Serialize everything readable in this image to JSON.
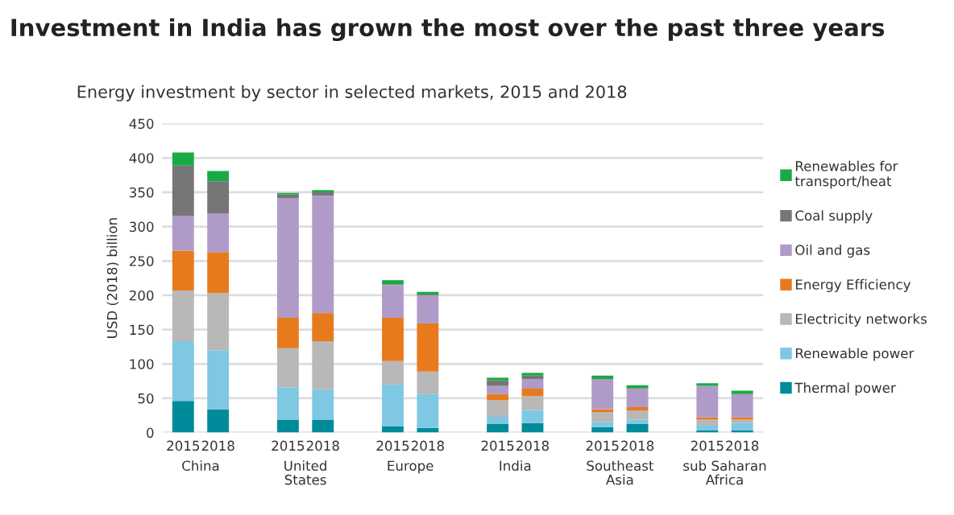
{
  "chart_data": {
    "type": "bar",
    "stacked": true,
    "title": "Investment in India has grown the most over the past three years",
    "subtitle": "Energy investment by sector in selected markets, 2015 and 2018",
    "ylabel": "USD (2018) billion",
    "categories": [
      "2015",
      "2018",
      null,
      "2015",
      "2018",
      null,
      "2015",
      "2018",
      null,
      "2015",
      "2018",
      null,
      "2015",
      "2018",
      null,
      "2015",
      "2018"
    ],
    "annotations": [
      "China",
      "United\nStates",
      "Europe",
      "India",
      "Southeast\nAsia",
      "sub Saharan\nAfrica"
    ],
    "ylim": [
      0,
      450
    ],
    "yticks": [
      0,
      50,
      100,
      150,
      200,
      250,
      300,
      350,
      400,
      450
    ],
    "grid": "y",
    "legend": "right",
    "series": [
      {
        "name": "Thermal power",
        "color": "#008b9a",
        "values": [
          46,
          34,
          null,
          19,
          19,
          null,
          9,
          7,
          null,
          13,
          14,
          null,
          8,
          13,
          null,
          3,
          3
        ]
      },
      {
        "name": "Renewable power",
        "color": "#7ec8e3",
        "values": [
          87,
          86,
          null,
          47,
          44,
          null,
          61,
          49,
          null,
          10,
          19,
          null,
          7,
          6,
          null,
          7,
          11
        ]
      },
      {
        "name": "Electricity networks",
        "color": "#b8b8b8",
        "values": [
          74,
          83,
          null,
          57,
          70,
          null,
          34,
          33,
          null,
          24,
          20,
          null,
          15,
          13,
          null,
          9,
          5
        ]
      },
      {
        "name": "Energy Efficiency",
        "color": "#e87a1e",
        "values": [
          58,
          60,
          null,
          44,
          41,
          null,
          63,
          70,
          null,
          9,
          11,
          null,
          4,
          5,
          null,
          3,
          3
        ]
      },
      {
        "name": "Oil and gas",
        "color": "#b09bc8",
        "values": [
          51,
          56,
          null,
          174,
          171,
          null,
          48,
          41,
          null,
          12,
          14,
          null,
          44,
          27,
          null,
          46,
          34
        ]
      },
      {
        "name": "Coal supply",
        "color": "#767676",
        "values": [
          73,
          47,
          null,
          6,
          5,
          null,
          1,
          1,
          null,
          8,
          5,
          null,
          0,
          1,
          null,
          0,
          0
        ]
      },
      {
        "name": "Renewables for\ntransport/heat",
        "color": "#1aaa45",
        "values": [
          19,
          15,
          null,
          2,
          3,
          null,
          6,
          4,
          null,
          4,
          4,
          null,
          5,
          4,
          null,
          4,
          5
        ]
      }
    ]
  }
}
